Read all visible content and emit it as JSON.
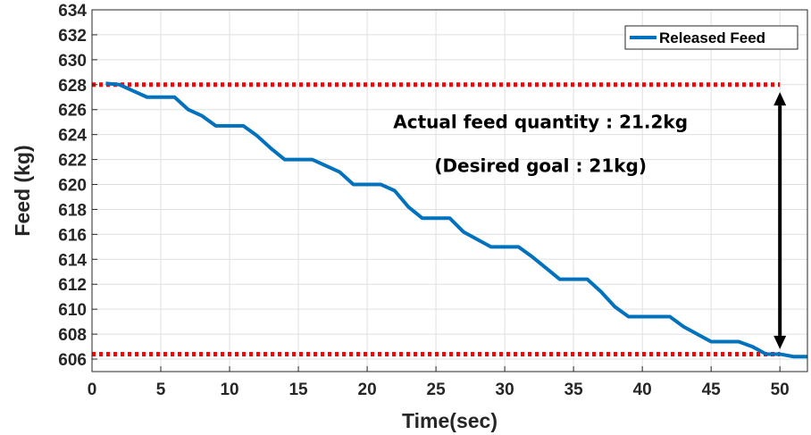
{
  "chart_data": {
    "type": "line",
    "xlabel": "Time(sec)",
    "ylabel": "Feed (kg)",
    "xlim": [
      0,
      52
    ],
    "ylim": [
      605,
      634
    ],
    "xticks": [
      0,
      5,
      10,
      15,
      20,
      25,
      30,
      35,
      40,
      45,
      50
    ],
    "yticks": [
      606,
      608,
      610,
      612,
      614,
      616,
      618,
      620,
      622,
      624,
      626,
      628,
      630,
      632,
      634
    ],
    "grid": true,
    "legend": {
      "placement": "top-right",
      "entries": [
        "Released Feed"
      ]
    },
    "series": [
      {
        "name": "Released Feed",
        "color": "#0072BD",
        "x": [
          1,
          2,
          3,
          4,
          5,
          6,
          7,
          8,
          9,
          10,
          11,
          12,
          13,
          14,
          15,
          16,
          17,
          18,
          19,
          20,
          21,
          22,
          23,
          24,
          25,
          26,
          27,
          28,
          29,
          30,
          31,
          32,
          33,
          34,
          35,
          36,
          37,
          38,
          39,
          40,
          41,
          42,
          43,
          44,
          45,
          46,
          47,
          48,
          49,
          50,
          51,
          52
        ],
        "y": [
          628.1,
          628.0,
          627.5,
          627.0,
          627.0,
          627.0,
          626.0,
          625.5,
          624.7,
          624.7,
          624.7,
          623.9,
          622.9,
          622.0,
          622.0,
          622.0,
          621.5,
          621.0,
          620.0,
          620.0,
          620.0,
          619.5,
          618.2,
          617.3,
          617.3,
          617.3,
          616.2,
          615.6,
          615.0,
          615.0,
          615.0,
          614.2,
          613.3,
          612.4,
          612.4,
          612.4,
          611.4,
          610.2,
          609.4,
          609.4,
          609.4,
          609.4,
          608.6,
          608.0,
          607.4,
          607.4,
          607.4,
          607.0,
          606.4,
          606.4,
          606.2,
          606.2
        ]
      }
    ],
    "reference_lines": [
      {
        "y": 628.0,
        "x_range": [
          0,
          50
        ],
        "color": "#FF0000",
        "style": "dotted"
      },
      {
        "y": 606.4,
        "x_range": [
          0,
          50
        ],
        "color": "#FF0000",
        "style": "dotted"
      }
    ],
    "arrow": {
      "x": 50,
      "y_range": [
        606.8,
        627.4
      ],
      "color": "#000000",
      "style": "double-headed"
    },
    "annotations": [
      {
        "text": "Actual feed quantity : 21.2kg",
        "x": 32.6,
        "y": 624.5
      },
      {
        "text": "(Desired goal : 21kg)",
        "x": 32.6,
        "y": 621.0
      }
    ]
  }
}
